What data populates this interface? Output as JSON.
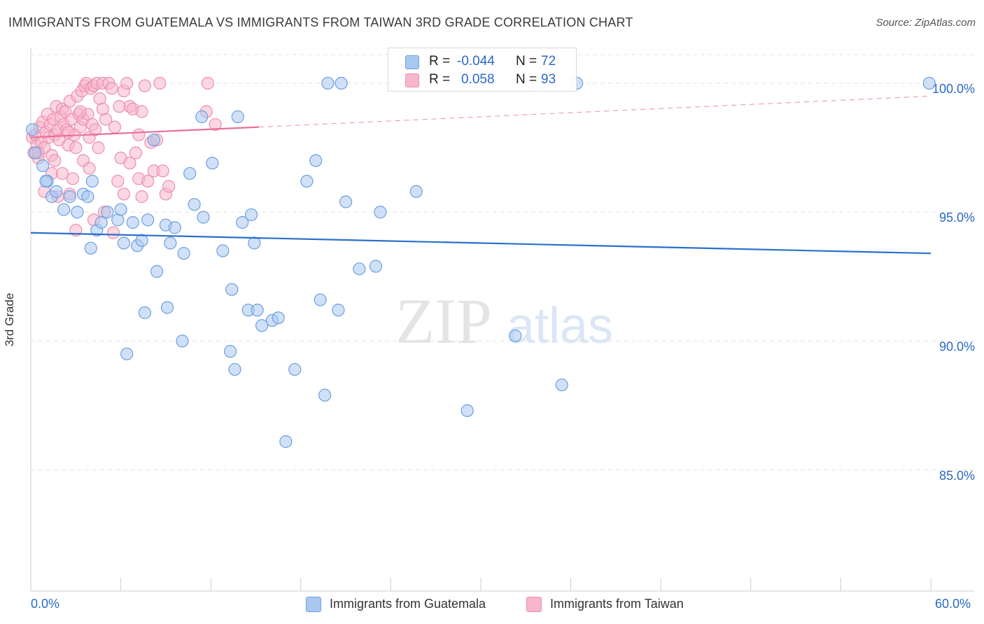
{
  "header": {
    "title": "IMMIGRANTS FROM GUATEMALA VS IMMIGRANTS FROM TAIWAN 3RD GRADE CORRELATION CHART",
    "source": "Source: ZipAtlas.com"
  },
  "watermark": {
    "zip": "ZIP",
    "atlas": "atlas"
  },
  "colors": {
    "blue_fill": "#a9c8f0",
    "blue_stroke": "#6d9fe0",
    "blue_line": "#2a6fcb",
    "pink_fill": "#f7b6cb",
    "pink_stroke": "#ec8fae",
    "pink_line": "#e8709a",
    "grid": "#e3e3e3",
    "tick_text": "#2a68c4"
  },
  "legend": {
    "rows": [
      {
        "r_label": "R =",
        "r_value": "-0.044",
        "n_label": "N =",
        "n_value": "72"
      },
      {
        "r_label": "R =",
        "r_value": "0.058",
        "n_label": "N =",
        "n_value": "93"
      }
    ]
  },
  "chart_data": {
    "type": "scatter",
    "title": "IMMIGRANTS FROM GUATEMALA VS IMMIGRANTS FROM TAIWAN 3RD GRADE CORRELATION CHART",
    "xlabel": "",
    "ylabel": "3rd Grade",
    "xlim": [
      0,
      60
    ],
    "ylim": [
      80.3,
      101.6
    ],
    "x_tick_labels": [
      "0.0%",
      "60.0%"
    ],
    "y_ticks": [
      85,
      90,
      95,
      100
    ],
    "y_tick_labels": [
      "85.0%",
      "90.0%",
      "95.0%",
      "100.0%"
    ],
    "series": [
      {
        "name": "Immigrants from Guatemala",
        "color": "blue",
        "trend": {
          "x": [
            0,
            60
          ],
          "y": [
            94.2,
            93.4
          ],
          "dashed_extension": false
        },
        "points": [
          [
            0.1,
            98.2
          ],
          [
            0.3,
            97.3
          ],
          [
            0.8,
            96.8
          ],
          [
            1.1,
            96.2
          ],
          [
            1.4,
            95.6
          ],
          [
            1.7,
            95.8
          ],
          [
            2.2,
            95.1
          ],
          [
            2.6,
            95.6
          ],
          [
            3.1,
            95.0
          ],
          [
            3.5,
            95.7
          ],
          [
            3.8,
            95.6
          ],
          [
            4.4,
            94.3
          ],
          [
            4.7,
            94.6
          ],
          [
            5.1,
            95.0
          ],
          [
            5.8,
            94.7
          ],
          [
            6.0,
            95.1
          ],
          [
            6.2,
            93.8
          ],
          [
            6.8,
            94.6
          ],
          [
            7.1,
            93.7
          ],
          [
            7.4,
            93.9
          ],
          [
            7.8,
            94.7
          ],
          [
            8.2,
            97.8
          ],
          [
            8.4,
            92.7
          ],
          [
            9.0,
            94.5
          ],
          [
            9.3,
            93.8
          ],
          [
            9.6,
            94.4
          ],
          [
            10.2,
            93.4
          ],
          [
            10.6,
            96.5
          ],
          [
            10.9,
            95.3
          ],
          [
            11.5,
            94.8
          ],
          [
            12.1,
            96.9
          ],
          [
            12.8,
            93.5
          ],
          [
            13.4,
            92.0
          ],
          [
            14.1,
            94.6
          ],
          [
            14.5,
            91.2
          ],
          [
            15.1,
            91.2
          ],
          [
            15.4,
            90.6
          ],
          [
            16.1,
            90.8
          ],
          [
            16.5,
            90.9
          ],
          [
            17.0,
            86.1
          ],
          [
            17.6,
            88.9
          ],
          [
            18.4,
            96.2
          ],
          [
            19.0,
            97.0
          ],
          [
            19.3,
            91.6
          ],
          [
            19.6,
            87.9
          ],
          [
            20.5,
            91.2
          ],
          [
            21.0,
            95.4
          ],
          [
            21.9,
            92.8
          ],
          [
            23.0,
            92.9
          ],
          [
            23.3,
            95.0
          ],
          [
            25.7,
            95.8
          ],
          [
            29.1,
            87.3
          ],
          [
            32.3,
            90.2
          ],
          [
            35.4,
            88.3
          ],
          [
            4.0,
            93.6
          ],
          [
            4.1,
            96.2
          ],
          [
            7.6,
            91.1
          ],
          [
            9.1,
            91.3
          ],
          [
            10.1,
            90.0
          ],
          [
            6.4,
            89.5
          ],
          [
            13.3,
            89.6
          ],
          [
            13.6,
            88.9
          ],
          [
            13.8,
            98.7
          ],
          [
            11.4,
            98.7
          ],
          [
            14.7,
            94.9
          ],
          [
            14.9,
            93.8
          ],
          [
            20.7,
            100.0
          ],
          [
            19.8,
            100.0
          ],
          [
            36.4,
            100.0
          ],
          [
            33.8,
            100.0
          ],
          [
            59.9,
            100.0
          ],
          [
            1.0,
            96.2
          ]
        ]
      },
      {
        "name": "Immigrants from Taiwan",
        "color": "pink",
        "trend": {
          "x": [
            0,
            15.2
          ],
          "y": [
            97.9,
            98.3
          ],
          "dashed_extension": {
            "x": [
              15.2,
              60
            ],
            "y": [
              98.3,
              99.5
            ]
          }
        },
        "points": [
          [
            0.1,
            97.9
          ],
          [
            0.2,
            97.3
          ],
          [
            0.3,
            98.0
          ],
          [
            0.4,
            97.6
          ],
          [
            0.5,
            97.1
          ],
          [
            0.6,
            98.3
          ],
          [
            0.7,
            97.7
          ],
          [
            0.8,
            98.5
          ],
          [
            0.9,
            97.5
          ],
          [
            1.0,
            98.1
          ],
          [
            1.1,
            98.8
          ],
          [
            1.2,
            97.9
          ],
          [
            1.3,
            98.4
          ],
          [
            1.4,
            97.2
          ],
          [
            1.5,
            98.6
          ],
          [
            1.6,
            98.0
          ],
          [
            1.7,
            99.1
          ],
          [
            1.8,
            98.2
          ],
          [
            1.9,
            97.8
          ],
          [
            2.0,
            98.7
          ],
          [
            2.1,
            99.0
          ],
          [
            2.2,
            98.4
          ],
          [
            2.3,
            98.9
          ],
          [
            2.4,
            98.2
          ],
          [
            2.5,
            97.6
          ],
          [
            2.6,
            99.3
          ],
          [
            2.7,
            98.6
          ],
          [
            2.8,
            96.3
          ],
          [
            2.9,
            98.0
          ],
          [
            3.0,
            97.5
          ],
          [
            3.1,
            99.5
          ],
          [
            3.2,
            98.8
          ],
          [
            3.3,
            98.3
          ],
          [
            3.4,
            99.7
          ],
          [
            3.5,
            98.6
          ],
          [
            3.6,
            99.9
          ],
          [
            3.7,
            100.0
          ],
          [
            3.8,
            98.8
          ],
          [
            3.9,
            97.9
          ],
          [
            4.0,
            99.8
          ],
          [
            4.1,
            98.4
          ],
          [
            4.2,
            99.9
          ],
          [
            4.3,
            98.2
          ],
          [
            4.4,
            100.0
          ],
          [
            4.6,
            99.4
          ],
          [
            4.8,
            100.0
          ],
          [
            5.0,
            98.6
          ],
          [
            5.2,
            100.0
          ],
          [
            5.4,
            99.8
          ],
          [
            5.6,
            98.3
          ],
          [
            5.8,
            96.2
          ],
          [
            6.0,
            97.1
          ],
          [
            6.2,
            99.7
          ],
          [
            6.4,
            100.0
          ],
          [
            6.6,
            99.1
          ],
          [
            6.8,
            99.0
          ],
          [
            7.0,
            97.3
          ],
          [
            7.2,
            96.3
          ],
          [
            7.4,
            98.9
          ],
          [
            7.6,
            99.9
          ],
          [
            7.8,
            96.2
          ],
          [
            8.0,
            97.7
          ],
          [
            8.2,
            96.6
          ],
          [
            8.4,
            97.8
          ],
          [
            8.6,
            100.0
          ],
          [
            8.8,
            96.6
          ],
          [
            9.0,
            95.7
          ],
          [
            9.2,
            96.0
          ],
          [
            11.7,
            98.9
          ],
          [
            11.8,
            100.0
          ],
          [
            12.3,
            98.4
          ],
          [
            0.9,
            95.8
          ],
          [
            1.4,
            96.5
          ],
          [
            2.6,
            95.7
          ],
          [
            3.0,
            94.3
          ],
          [
            3.5,
            97.0
          ],
          [
            4.2,
            94.7
          ],
          [
            4.9,
            95.0
          ],
          [
            5.5,
            94.2
          ],
          [
            6.2,
            95.7
          ],
          [
            7.4,
            95.6
          ],
          [
            5.9,
            99.1
          ],
          [
            3.9,
            96.7
          ],
          [
            2.1,
            96.5
          ],
          [
            1.8,
            95.6
          ],
          [
            4.5,
            97.5
          ],
          [
            6.6,
            96.9
          ],
          [
            7.2,
            98.0
          ],
          [
            3.3,
            98.9
          ],
          [
            4.8,
            99.0
          ],
          [
            2.5,
            98.1
          ],
          [
            1.6,
            97.0
          ],
          [
            0.5,
            97.3
          ]
        ]
      }
    ],
    "legend_position": "top-center"
  }
}
